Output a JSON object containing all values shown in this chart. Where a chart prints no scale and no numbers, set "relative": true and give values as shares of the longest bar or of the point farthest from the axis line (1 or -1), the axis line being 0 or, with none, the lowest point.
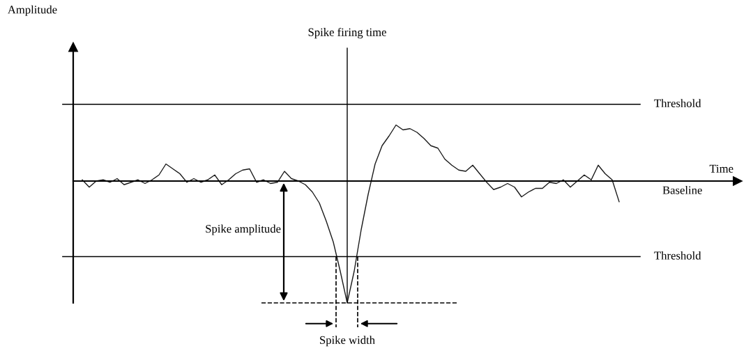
{
  "chart_data": {
    "type": "line",
    "relative": true,
    "categories": [
      null,
      null,
      null,
      null,
      null,
      null,
      null,
      null,
      null,
      null,
      null,
      null,
      null,
      null,
      null,
      null,
      null,
      null,
      null,
      null,
      null,
      null,
      null,
      null,
      null,
      null,
      null,
      null,
      null,
      null,
      null,
      null,
      null,
      null,
      null,
      null,
      null,
      null,
      null,
      null,
      null,
      null,
      null,
      null,
      null,
      null,
      null,
      null,
      null,
      null,
      null,
      null,
      null,
      null,
      null,
      null,
      null,
      null,
      null,
      null,
      null,
      null,
      null,
      null,
      null,
      null,
      null,
      null,
      null,
      null,
      null,
      null,
      null,
      null,
      null,
      null,
      null,
      null
    ],
    "series": [
      {
        "color": "#1a1a1a",
        "values": [
          0.01,
          -0.05,
          0,
          0.01,
          -0.01,
          0.02,
          -0.03,
          -0.01,
          0.01,
          -0.02,
          0.01,
          0.05,
          0.14,
          0.1,
          0.06,
          -0.01,
          0.02,
          -0.01,
          0.01,
          0.05,
          -0.03,
          0.01,
          0.06,
          0.09,
          0.1,
          -0.01,
          0.01,
          -0.02,
          -0.01,
          0.08,
          0.02,
          0,
          -0.03,
          -0.09,
          -0.18,
          -0.33,
          -0.5,
          -0.74,
          -1,
          -0.74,
          -0.4,
          -0.11,
          0.14,
          0.29,
          0.37,
          0.46,
          0.42,
          0.43,
          0.4,
          0.35,
          0.29,
          0.27,
          0.18,
          0.13,
          0.09,
          0.08,
          0.13,
          0.06,
          -0.01,
          -0.07,
          -0.05,
          -0.02,
          -0.05,
          -0.13,
          -0.09,
          -0.06,
          -0.06,
          -0.01,
          -0.02,
          0.01,
          -0.05,
          0,
          0.05,
          0.01,
          0.13,
          0.06,
          0.01,
          -0.17
        ]
      }
    ],
    "ref_lines": [
      {
        "axis": "y",
        "value": 0.63,
        "label": "Threshold",
        "color": "#000000",
        "line_style": "solid"
      },
      {
        "axis": "y",
        "value": -0.62,
        "label": "Threshold",
        "color": "#000000",
        "line_style": "solid"
      },
      {
        "axis": "y",
        "value": -1,
        "color": "#000000",
        "line_style": "dashed"
      }
    ],
    "annotations": [
      "Amplitude",
      "Spike firing time",
      "Time",
      "Baseline",
      "Spike amplitude",
      "Spike width"
    ],
    "marker": "none",
    "line_style": "solid"
  }
}
